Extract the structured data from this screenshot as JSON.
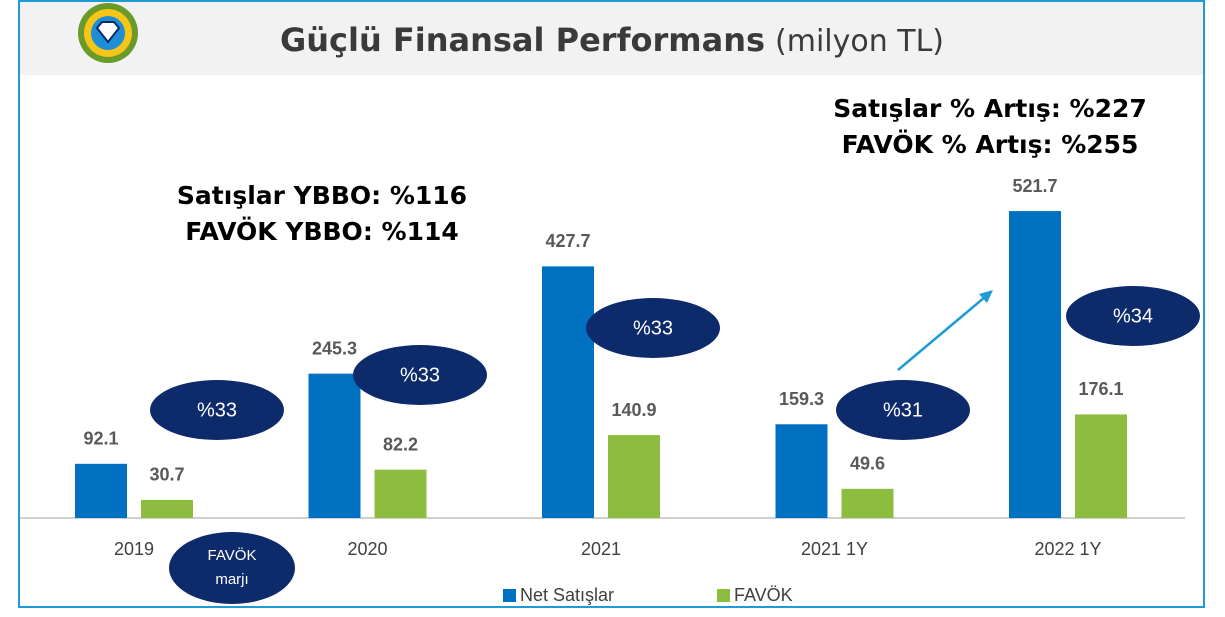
{
  "chart_data": {
    "type": "bar",
    "title": "Güçlü Finansal Performans",
    "subtitle": "(milyon TL)",
    "categories": [
      "2019",
      "2020",
      "2021",
      "2021 1Y",
      "2022 1Y"
    ],
    "series": [
      {
        "name": "Net Satışlar",
        "color": "#0070c0",
        "values": [
          92.1,
          245.3,
          427.7,
          159.3,
          521.7
        ]
      },
      {
        "name": "FAVÖK",
        "color": "#8cbd3f",
        "values": [
          30.7,
          82.2,
          140.9,
          49.6,
          176.1
        ]
      }
    ],
    "margin_labels": [
      "%33",
      "%33",
      "%33",
      "%31",
      "%34"
    ],
    "margin_legend": [
      "FAVÖK",
      "marjı"
    ],
    "annotations": [
      "Satışlar YBBO: %116",
      "FAVÖK YBBO: %114",
      "Satışlar % Artış: %227",
      "FAVÖK % Artış: %255"
    ],
    "ylim": [
      0,
      600
    ],
    "legend": "bottom"
  }
}
